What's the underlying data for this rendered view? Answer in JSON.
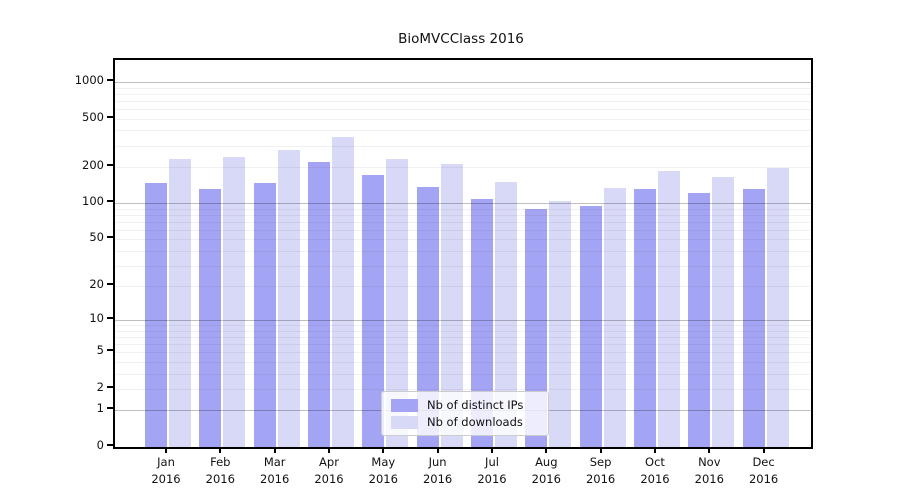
{
  "chart_data": {
    "type": "bar",
    "title": "BioMVCClass 2016",
    "year": "2016",
    "categories": [
      "Jan",
      "Feb",
      "Mar",
      "Apr",
      "May",
      "Jun",
      "Jul",
      "Aug",
      "Sep",
      "Oct",
      "Nov",
      "Dec"
    ],
    "series": [
      {
        "name": "Nb of distinct IPs",
        "color": "#a4a4f4",
        "values": [
          146,
          130,
          148,
          220,
          170,
          136,
          109,
          89,
          94,
          132,
          122,
          132
        ]
      },
      {
        "name": "Nb of downloads",
        "color": "#d8d8f7",
        "values": [
          231,
          243,
          275,
          351,
          233,
          211,
          149,
          104,
          135,
          184,
          165,
          196
        ]
      }
    ],
    "xlabel": "",
    "ylabel": "",
    "y_scale": "log1p",
    "y_ticks": [
      0,
      1,
      2,
      5,
      10,
      20,
      50,
      100,
      200,
      500,
      1000
    ],
    "ylim": [
      0,
      1500
    ],
    "grid": {
      "major_values": [
        1,
        10,
        100,
        1000
      ],
      "minor_color": "rgba(0,0,0,0.055)",
      "major_color": "rgba(0,0,0,0.25)"
    },
    "legend_position": "bottom-center",
    "axis_color": "#000000"
  }
}
